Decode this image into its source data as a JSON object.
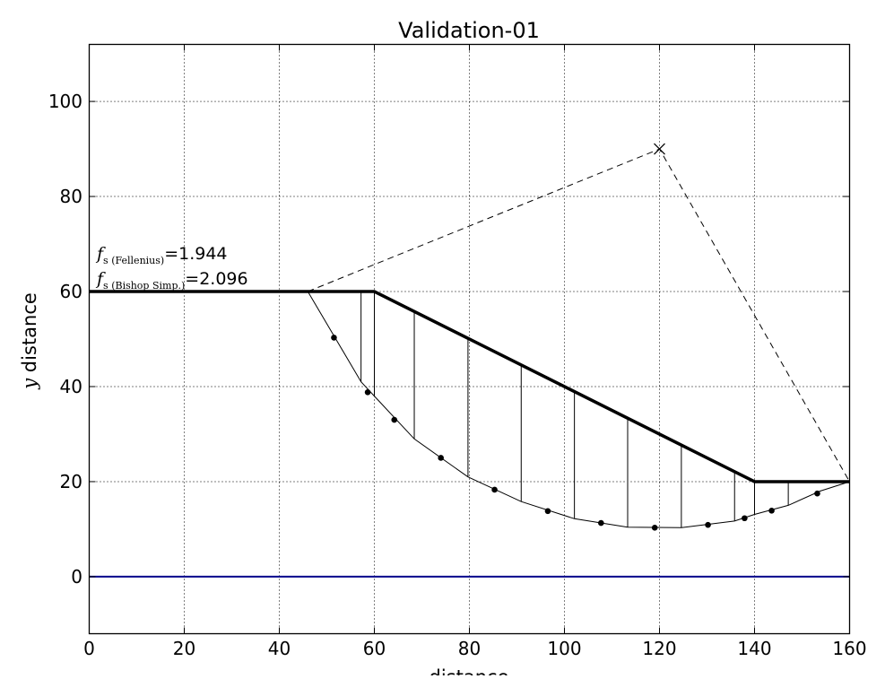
{
  "chart_data": {
    "type": "line",
    "title": "Validation-01",
    "xlabel": "distance",
    "ylabel_var": "y",
    "ylabel_text": "distance",
    "xlim": [
      0,
      160
    ],
    "ylim": [
      -12,
      112
    ],
    "x_ticks": [
      0,
      20,
      40,
      60,
      80,
      100,
      120,
      140,
      160
    ],
    "y_ticks": [
      0,
      20,
      40,
      60,
      80,
      100
    ],
    "grid": true,
    "colors": {
      "surface": "#000000",
      "water_table": "#00008b",
      "grid": "#000000"
    },
    "terrain_surface": [
      [
        0,
        60
      ],
      [
        60,
        60
      ],
      [
        140,
        20
      ],
      [
        160,
        20
      ]
    ],
    "water_table": [
      [
        0,
        0
      ],
      [
        160,
        0
      ]
    ],
    "slip_circle_center": [
      120,
      90
    ],
    "radius_lines": [
      [
        [
          46,
          60
        ],
        [
          120,
          90
        ],
        [
          160,
          20
        ]
      ]
    ],
    "slip_surface": [
      [
        46,
        60
      ],
      [
        57.2,
        41
      ],
      [
        60,
        38
      ],
      [
        68.4,
        29
      ],
      [
        79.7,
        21
      ],
      [
        90.9,
        15.8
      ],
      [
        102.1,
        12.2
      ],
      [
        113.3,
        10.4
      ],
      [
        124.6,
        10.3
      ],
      [
        135.8,
        11.7
      ],
      [
        140,
        13.1
      ],
      [
        147.1,
        15
      ],
      [
        153.8,
        18
      ],
      [
        160,
        20
      ]
    ],
    "slice_boundaries": [
      {
        "x": 57.2,
        "top": 60,
        "bottom": 41
      },
      {
        "x": 60,
        "top": 60,
        "bottom": 38
      },
      {
        "x": 68.4,
        "top": 55.8,
        "bottom": 29
      },
      {
        "x": 79.7,
        "top": 50.2,
        "bottom": 21
      },
      {
        "x": 90.9,
        "top": 44.5,
        "bottom": 15.8
      },
      {
        "x": 102.1,
        "top": 39,
        "bottom": 12.2
      },
      {
        "x": 113.3,
        "top": 33.4,
        "bottom": 10.4
      },
      {
        "x": 124.6,
        "top": 27.7,
        "bottom": 10.3
      },
      {
        "x": 135.8,
        "top": 22.1,
        "bottom": 11.7
      },
      {
        "x": 140,
        "top": 20,
        "bottom": 13.1
      },
      {
        "x": 147.1,
        "top": 20,
        "bottom": 15
      }
    ],
    "slice_base_points": [
      [
        51.5,
        50.3
      ],
      [
        58.6,
        38.8
      ],
      [
        64.2,
        33
      ],
      [
        74,
        25
      ],
      [
        85.3,
        18.3
      ],
      [
        96.5,
        13.8
      ],
      [
        107.7,
        11.3
      ],
      [
        119,
        10.3
      ],
      [
        130.2,
        10.9
      ],
      [
        137.9,
        12.3
      ],
      [
        143.6,
        13.9
      ],
      [
        153.2,
        17.5
      ]
    ],
    "annotation": {
      "line1_main": "f",
      "line1_sub": "s (Fellenius)",
      "line1_value": "=1.944",
      "line2_main": "f",
      "line2_sub": "s (Bishop Simp.)",
      "line2_value": "=2.096"
    }
  }
}
